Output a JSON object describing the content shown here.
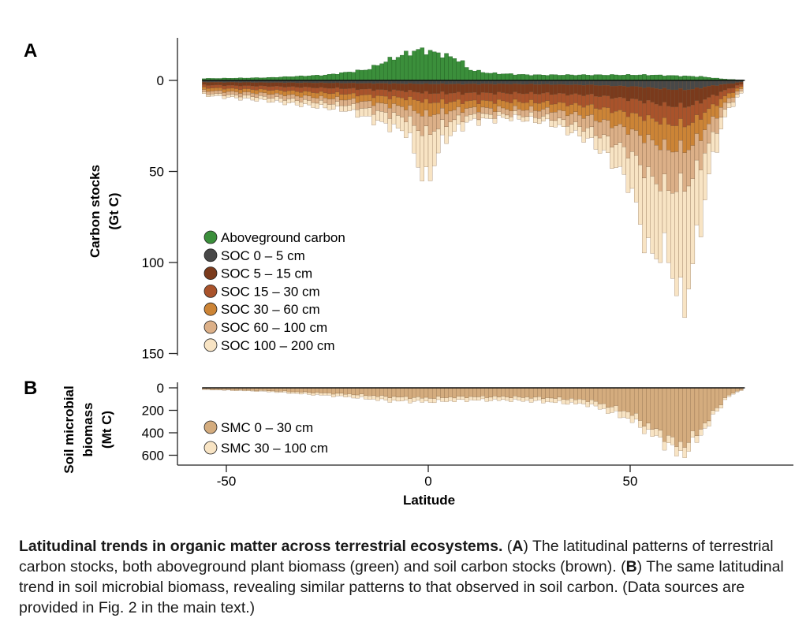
{
  "panel_a": {
    "letter": "A",
    "ylabel_line1": "Carbon stocks",
    "ylabel_line2": "(Gt C)",
    "yticks": [
      0,
      50,
      100,
      150
    ],
    "legend": [
      {
        "label": "Aboveground carbon",
        "color": "#3b8f3b"
      },
      {
        "label": "SOC 0 – 5 cm",
        "color": "#484848"
      },
      {
        "label": "SOC 5 – 15 cm",
        "color": "#7a3a1c"
      },
      {
        "label": "SOC 15 – 30 cm",
        "color": "#a9532b"
      },
      {
        "label": "SOC 30 – 60 cm",
        "color": "#cc8436"
      },
      {
        "label": "SOC 60 – 100 cm",
        "color": "#dcb088"
      },
      {
        "label": "SOC 100 – 200 cm",
        "color": "#f8e4c4"
      }
    ]
  },
  "panel_b": {
    "letter": "B",
    "ylabel_line1": "Soil microbial",
    "ylabel_line2": "biomass",
    "ylabel_line3": "(Mt C)",
    "yticks": [
      0,
      200,
      400,
      600
    ],
    "legend": [
      {
        "label": "SMC 0 – 30 cm",
        "color": "#d4ac7e"
      },
      {
        "label": "SMC 30 – 100 cm",
        "color": "#f8e4c4"
      }
    ]
  },
  "x_axis": {
    "label": "Latitude",
    "ticks": [
      -50,
      0,
      50
    ]
  },
  "caption": {
    "title": "Latitudinal trends in organic matter across terrestrial ecosystems.",
    "part_a_open": " (",
    "part_a_letter": "A",
    "part_a_text": ") The latitudinal patterns of terrestrial carbon stocks, both aboveground plant biomass (green) and soil carbon stocks (brown). (",
    "part_b_letter": "B",
    "part_b_text": ") The same latitudinal trend in soil microbial biomass, revealing similar patterns to that observed in soil carbon. (Data sources are provided in Fig. 2 in the main text.)"
  },
  "chart_data": [
    {
      "type": "bar",
      "panel": "A",
      "description_axis": "Carbon stocks by latitude band (bars stacked; aboveground plotted upward, soil layers downward)",
      "x_unit": "degrees latitude",
      "ylim": [
        -20,
        150
      ],
      "ylabel": "Carbon stocks (Gt C)",
      "xlabel": "Latitude",
      "legend_position": "lower-left",
      "series_profiles": [
        {
          "name": "Aboveground carbon",
          "color": "#3b8f3b",
          "points": [
            [
              -56,
              1
            ],
            [
              -40,
              1.5
            ],
            [
              -25,
              3
            ],
            [
              -15,
              6
            ],
            [
              -10,
              11
            ],
            [
              -5,
              15
            ],
            [
              -2,
              17
            ],
            [
              0,
              16
            ],
            [
              4,
              14
            ],
            [
              8,
              11
            ],
            [
              10,
              6
            ],
            [
              15,
              4
            ],
            [
              25,
              3
            ],
            [
              40,
              3
            ],
            [
              55,
              3
            ],
            [
              62,
              2.5
            ],
            [
              68,
              2
            ],
            [
              72,
              1
            ],
            [
              75,
              0.5
            ],
            [
              78,
              0.3
            ]
          ]
        },
        {
          "name": "SOC 0 – 5 cm",
          "color": "#484848",
          "points": [
            [
              -56,
              1
            ],
            [
              -40,
              1.2
            ],
            [
              -20,
              1.5
            ],
            [
              0,
              2
            ],
            [
              20,
              2
            ],
            [
              40,
              2.5
            ],
            [
              52,
              3.5
            ],
            [
              60,
              5
            ],
            [
              65,
              5
            ],
            [
              70,
              3
            ],
            [
              74,
              2
            ],
            [
              78,
              0.8
            ]
          ]
        },
        {
          "name": "SOC 5 – 15 cm",
          "color": "#7a3a1c",
          "points": [
            [
              -56,
              1.5
            ],
            [
              -40,
              2
            ],
            [
              -20,
              3
            ],
            [
              -5,
              4
            ],
            [
              0,
              5
            ],
            [
              10,
              5
            ],
            [
              20,
              5
            ],
            [
              30,
              5
            ],
            [
              40,
              5.5
            ],
            [
              50,
              7
            ],
            [
              55,
              8
            ],
            [
              60,
              9
            ],
            [
              65,
              9
            ],
            [
              70,
              6
            ],
            [
              74,
              3
            ],
            [
              78,
              1
            ]
          ]
        },
        {
          "name": "SOC 15 – 30 cm",
          "color": "#a9532b",
          "points": [
            [
              -56,
              1.5
            ],
            [
              -40,
              2
            ],
            [
              -20,
              3
            ],
            [
              -5,
              4
            ],
            [
              0,
              5
            ],
            [
              10,
              4.5
            ],
            [
              20,
              4.5
            ],
            [
              30,
              5
            ],
            [
              40,
              6
            ],
            [
              50,
              8
            ],
            [
              55,
              9
            ],
            [
              60,
              10
            ],
            [
              65,
              10
            ],
            [
              70,
              6
            ],
            [
              74,
              3
            ],
            [
              78,
              1
            ]
          ]
        },
        {
          "name": "SOC 30 – 60 cm",
          "color": "#cc8436",
          "points": [
            [
              -56,
              1.5
            ],
            [
              -40,
              2
            ],
            [
              -20,
              3
            ],
            [
              -5,
              5
            ],
            [
              -2,
              7
            ],
            [
              0,
              7
            ],
            [
              5,
              5
            ],
            [
              10,
              4
            ],
            [
              20,
              4
            ],
            [
              30,
              4
            ],
            [
              40,
              6
            ],
            [
              50,
              9
            ],
            [
              55,
              12
            ],
            [
              60,
              14
            ],
            [
              65,
              13
            ],
            [
              70,
              8
            ],
            [
              74,
              3
            ],
            [
              78,
              1
            ]
          ]
        },
        {
          "name": "SOC 60 – 100 cm",
          "color": "#dcb088",
          "points": [
            [
              -56,
              1.5
            ],
            [
              -40,
              2
            ],
            [
              -20,
              3
            ],
            [
              -5,
              6
            ],
            [
              -2,
              10
            ],
            [
              0,
              10
            ],
            [
              5,
              6
            ],
            [
              10,
              4
            ],
            [
              20,
              3
            ],
            [
              30,
              4
            ],
            [
              40,
              7
            ],
            [
              50,
              12
            ],
            [
              55,
              20
            ],
            [
              60,
              22
            ],
            [
              65,
              19
            ],
            [
              70,
              10
            ],
            [
              74,
              3
            ],
            [
              78,
              1
            ]
          ]
        },
        {
          "name": "SOC 100 – 200 cm",
          "color": "#f8e4c4",
          "points": [
            [
              -56,
              1
            ],
            [
              -40,
              2
            ],
            [
              -20,
              3
            ],
            [
              -5,
              8
            ],
            [
              -2,
              22
            ],
            [
              0,
              27
            ],
            [
              3,
              10
            ],
            [
              5,
              8
            ],
            [
              10,
              3
            ],
            [
              20,
              2
            ],
            [
              30,
              3
            ],
            [
              40,
              6
            ],
            [
              45,
              10
            ],
            [
              50,
              18
            ],
            [
              52,
              30
            ],
            [
              55,
              45
            ],
            [
              58,
              35
            ],
            [
              60,
              40
            ],
            [
              63,
              70
            ],
            [
              65,
              50
            ],
            [
              68,
              30
            ],
            [
              70,
              13
            ],
            [
              74,
              3
            ],
            [
              78,
              1
            ]
          ]
        }
      ]
    },
    {
      "type": "bar",
      "panel": "B",
      "x_unit": "degrees latitude",
      "ylim": [
        0,
        650
      ],
      "ylabel": "Soil microbial biomass (Mt C)",
      "xlabel": "Latitude",
      "xlim": [
        -60,
        83
      ],
      "xticks": [
        -50,
        0,
        50
      ],
      "legend_position": "lower-left",
      "series_profiles": [
        {
          "name": "SMC 0 – 30 cm",
          "color": "#d4ac7e",
          "points": [
            [
              -56,
              12
            ],
            [
              -40,
              25
            ],
            [
              -20,
              55
            ],
            [
              -10,
              80
            ],
            [
              0,
              90
            ],
            [
              10,
              80
            ],
            [
              20,
              80
            ],
            [
              30,
              90
            ],
            [
              40,
              110
            ],
            [
              50,
              220
            ],
            [
              55,
              350
            ],
            [
              60,
              450
            ],
            [
              62,
              520
            ],
            [
              64,
              480
            ],
            [
              66,
              430
            ],
            [
              70,
              250
            ],
            [
              74,
              70
            ],
            [
              78,
              10
            ]
          ]
        },
        {
          "name": "SMC 30 – 100 cm",
          "color": "#f8e4c4",
          "points": [
            [
              -56,
              3
            ],
            [
              -40,
              8
            ],
            [
              -20,
              25
            ],
            [
              -10,
              35
            ],
            [
              0,
              35
            ],
            [
              10,
              30
            ],
            [
              20,
              30
            ],
            [
              30,
              35
            ],
            [
              40,
              40
            ],
            [
              50,
              60
            ],
            [
              55,
              60
            ],
            [
              60,
              70
            ],
            [
              63,
              90
            ],
            [
              66,
              60
            ],
            [
              70,
              40
            ],
            [
              74,
              15
            ],
            [
              78,
              3
            ]
          ]
        }
      ]
    }
  ]
}
